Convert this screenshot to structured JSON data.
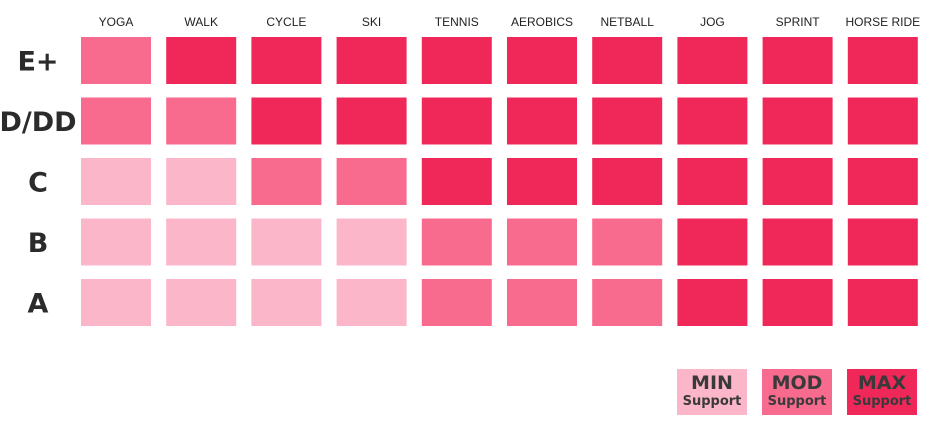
{
  "chart_data": {
    "type": "heatmap",
    "columns": [
      "YOGA",
      "WALK",
      "CYCLE",
      "SKI",
      "TENNIS",
      "AEROBICS",
      "NETBALL",
      "JOG",
      "SPRINT",
      "HORSE RIDE"
    ],
    "rows": [
      "E+",
      "D/DD",
      "C",
      "B",
      "A"
    ],
    "levels": [
      "min",
      "mod",
      "max"
    ],
    "values": [
      [
        "mod",
        "max",
        "max",
        "max",
        "max",
        "max",
        "max",
        "max",
        "max",
        "max"
      ],
      [
        "mod",
        "mod",
        "max",
        "max",
        "max",
        "max",
        "max",
        "max",
        "max",
        "max"
      ],
      [
        "min",
        "min",
        "mod",
        "mod",
        "max",
        "max",
        "max",
        "max",
        "max",
        "max"
      ],
      [
        "min",
        "min",
        "min",
        "min",
        "mod",
        "mod",
        "mod",
        "max",
        "max",
        "max"
      ],
      [
        "min",
        "min",
        "min",
        "min",
        "mod",
        "mod",
        "mod",
        "max",
        "max",
        "max"
      ]
    ],
    "colors": {
      "min": "#fbb6ca",
      "mod": "#f86b8f",
      "max": "#f0285a"
    },
    "legend": {
      "placement": "bottom-right",
      "items": [
        {
          "level": "min",
          "title": "MIN",
          "subtitle": "Support"
        },
        {
          "level": "mod",
          "title": "MOD",
          "subtitle": "Support"
        },
        {
          "level": "max",
          "title": "MAX",
          "subtitle": "Support"
        }
      ]
    }
  }
}
